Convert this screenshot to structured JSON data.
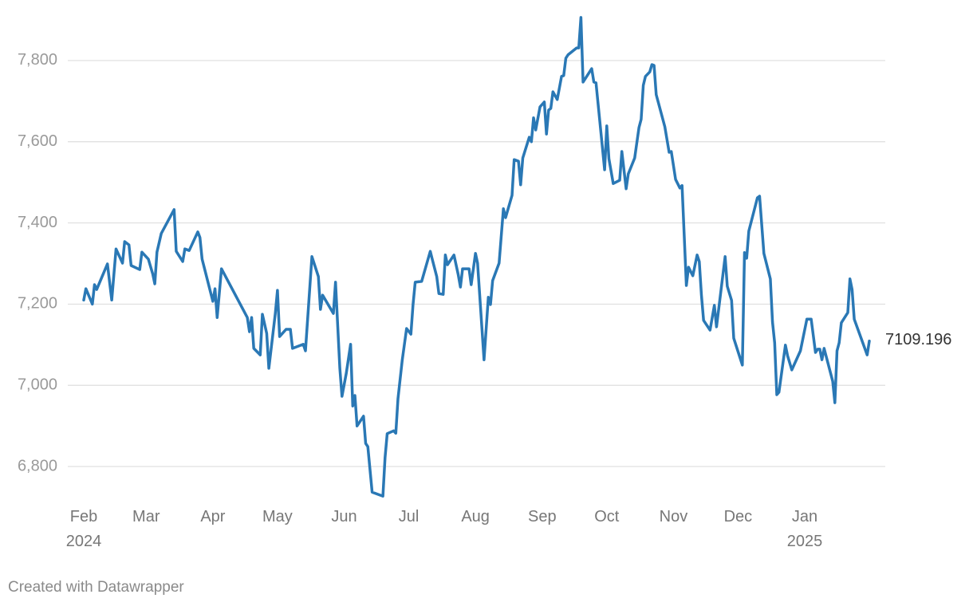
{
  "chart_data": {
    "type": "line",
    "credit": "Created with Datawrapper",
    "color": "#2a78b5",
    "grid": true,
    "xlim": [
      0,
      365
    ],
    "ylim": [
      6700,
      7900
    ],
    "yticks": [
      {
        "value": 6800,
        "label": "6,800"
      },
      {
        "value": 7000,
        "label": "7,000"
      },
      {
        "value": 7200,
        "label": "7,200"
      },
      {
        "value": 7400,
        "label": "7,400"
      },
      {
        "value": 7600,
        "label": "7,600"
      },
      {
        "value": 7800,
        "label": "7,800"
      }
    ],
    "xticks": [
      {
        "value": 0,
        "label": "Feb 2024"
      },
      {
        "value": 29,
        "label": "Mar"
      },
      {
        "value": 60,
        "label": "Apr"
      },
      {
        "value": 90,
        "label": "May"
      },
      {
        "value": 121,
        "label": "Jun"
      },
      {
        "value": 151,
        "label": "Jul"
      },
      {
        "value": 182,
        "label": "Aug"
      },
      {
        "value": 213,
        "label": "Sep"
      },
      {
        "value": 243,
        "label": "Oct"
      },
      {
        "value": 274,
        "label": "Nov"
      },
      {
        "value": 304,
        "label": "Dec"
      },
      {
        "value": 335,
        "label": "Jan 2025"
      }
    ],
    "x": [
      0,
      1,
      4,
      5,
      6,
      11,
      13,
      15,
      18,
      19,
      21,
      22,
      26,
      27,
      30,
      32,
      33,
      34,
      36,
      42,
      43,
      46,
      47,
      49,
      53,
      54,
      55,
      60,
      61,
      62,
      64,
      76,
      77,
      78,
      79,
      82,
      83,
      85,
      86,
      89,
      90,
      91,
      94,
      96,
      97,
      102,
      103,
      106,
      109,
      110,
      111,
      116,
      117,
      119,
      120,
      122,
      124,
      125,
      126,
      127,
      130,
      131,
      132,
      134,
      139,
      140,
      141,
      144,
      145,
      146,
      148,
      150,
      152,
      153,
      154,
      157,
      161,
      162,
      164,
      165,
      167,
      168,
      169,
      172,
      174,
      175,
      176,
      179,
      180,
      182,
      183,
      186,
      188,
      189,
      190,
      193,
      195,
      196,
      199,
      200,
      202,
      203,
      204,
      207,
      208,
      209,
      210,
      212,
      214,
      215,
      216,
      217,
      218,
      220,
      222,
      223,
      224,
      225,
      229,
      230,
      231,
      232,
      236,
      237,
      238,
      242,
      243,
      244,
      246,
      249,
      250,
      252,
      253,
      256,
      258,
      259,
      260,
      261,
      263,
      264,
      265,
      266,
      270,
      272,
      273,
      275,
      277,
      278,
      280,
      281,
      283,
      285,
      286,
      287,
      288,
      291,
      293,
      294,
      298,
      299,
      301,
      302,
      306,
      307,
      308,
      309,
      313,
      314,
      316,
      319,
      320,
      321,
      322,
      323,
      326,
      327,
      329,
      333,
      336,
      338,
      340,
      341,
      342,
      343,
      344,
      348,
      349,
      350,
      351,
      352,
      355,
      356,
      357,
      358,
      364,
      365
    ],
    "values": [
      7210,
      7238,
      7200,
      7248,
      7236,
      7299,
      7210,
      7336,
      7301,
      7354,
      7346,
      7295,
      7285,
      7328,
      7311,
      7275,
      7250,
      7328,
      7374,
      7433,
      7330,
      7305,
      7336,
      7332,
      7378,
      7364,
      7311,
      7207,
      7238,
      7167,
      7287,
      7167,
      7132,
      7167,
      7091,
      7075,
      7175,
      7128,
      7042,
      7177,
      7234,
      7120,
      7138,
      7138,
      7091,
      7101,
      7085,
      7317,
      7268,
      7187,
      7222,
      7177,
      7254,
      7042,
      6973,
      7030,
      7101,
      6949,
      6975,
      6900,
      6924,
      6857,
      6849,
      6737,
      6727,
      6822,
      6881,
      6888,
      6882,
      6967,
      7063,
      7140,
      7126,
      7199,
      7254,
      7256,
      7330,
      7309,
      7268,
      7226,
      7224,
      7321,
      7297,
      7321,
      7272,
      7242,
      7287,
      7287,
      7248,
      7325,
      7301,
      7063,
      7217,
      7199,
      7258,
      7301,
      7435,
      7413,
      7468,
      7556,
      7552,
      7494,
      7560,
      7611,
      7600,
      7659,
      7629,
      7686,
      7698,
      7619,
      7678,
      7682,
      7723,
      7704,
      7761,
      7763,
      7806,
      7814,
      7831,
      7831,
      7906,
      7747,
      7780,
      7747,
      7745,
      7531,
      7639,
      7558,
      7497,
      7505,
      7576,
      7484,
      7521,
      7560,
      7635,
      7655,
      7739,
      7761,
      7772,
      7790,
      7788,
      7716,
      7637,
      7574,
      7576,
      7507,
      7486,
      7492,
      7246,
      7291,
      7270,
      7321,
      7305,
      7222,
      7160,
      7136,
      7197,
      7144,
      7317,
      7244,
      7209,
      7116,
      7050,
      7327,
      7313,
      7380,
      7462,
      7466,
      7325,
      7262,
      7156,
      7105,
      6977,
      6983,
      7099,
      7073,
      7038,
      7085,
      7163,
      7163,
      7081,
      7089,
      7089,
      7063,
      7091,
      7010,
      6957,
      7085,
      7105,
      7154,
      7179,
      7262,
      7236,
      7163,
      7075,
      7109.196
    ]
  }
}
